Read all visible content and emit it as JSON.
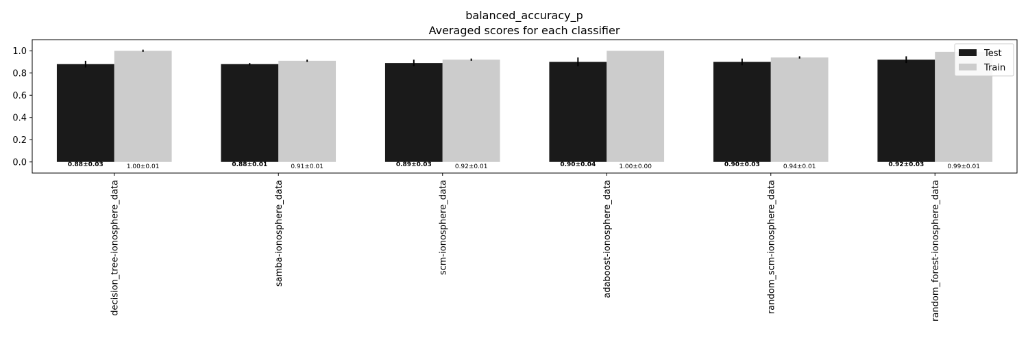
{
  "chart_data": {
    "type": "bar",
    "title": "balanced_accuracy_p",
    "subtitle": "Averaged scores for each classifier",
    "categories": [
      "decision_tree-ionosphere_data",
      "samba-ionosphere_data",
      "scm-ionosphere_data",
      "adaboost-ionosphere_data",
      "random_scm-ionosphere_data",
      "random_forest-ionosphere_data"
    ],
    "series": [
      {
        "name": "Test",
        "color": "#1a1a1a",
        "values": [
          0.88,
          0.88,
          0.89,
          0.9,
          0.9,
          0.92
        ],
        "errors": [
          0.03,
          0.01,
          0.03,
          0.04,
          0.03,
          0.03
        ],
        "labels": [
          "0.88±0.03",
          "0.88±0.01",
          "0.89±0.03",
          "0.90±0.04",
          "0.90±0.03",
          "0.92±0.03"
        ]
      },
      {
        "name": "Train",
        "color": "#cccccc",
        "values": [
          1.0,
          0.91,
          0.92,
          1.0,
          0.94,
          0.99
        ],
        "errors": [
          0.01,
          0.01,
          0.01,
          0.0,
          0.01,
          0.01
        ],
        "labels": [
          "1.00±0.01",
          "0.91±0.01",
          "0.92±0.01",
          "1.00±0.00",
          "0.94±0.01",
          "0.99±0.01"
        ]
      }
    ],
    "yticks": [
      "0.0",
      "0.2",
      "0.4",
      "0.6",
      "0.8",
      "1.0"
    ],
    "ylim": [
      -0.1,
      1.1
    ],
    "grid": false,
    "legend": "top-right"
  }
}
